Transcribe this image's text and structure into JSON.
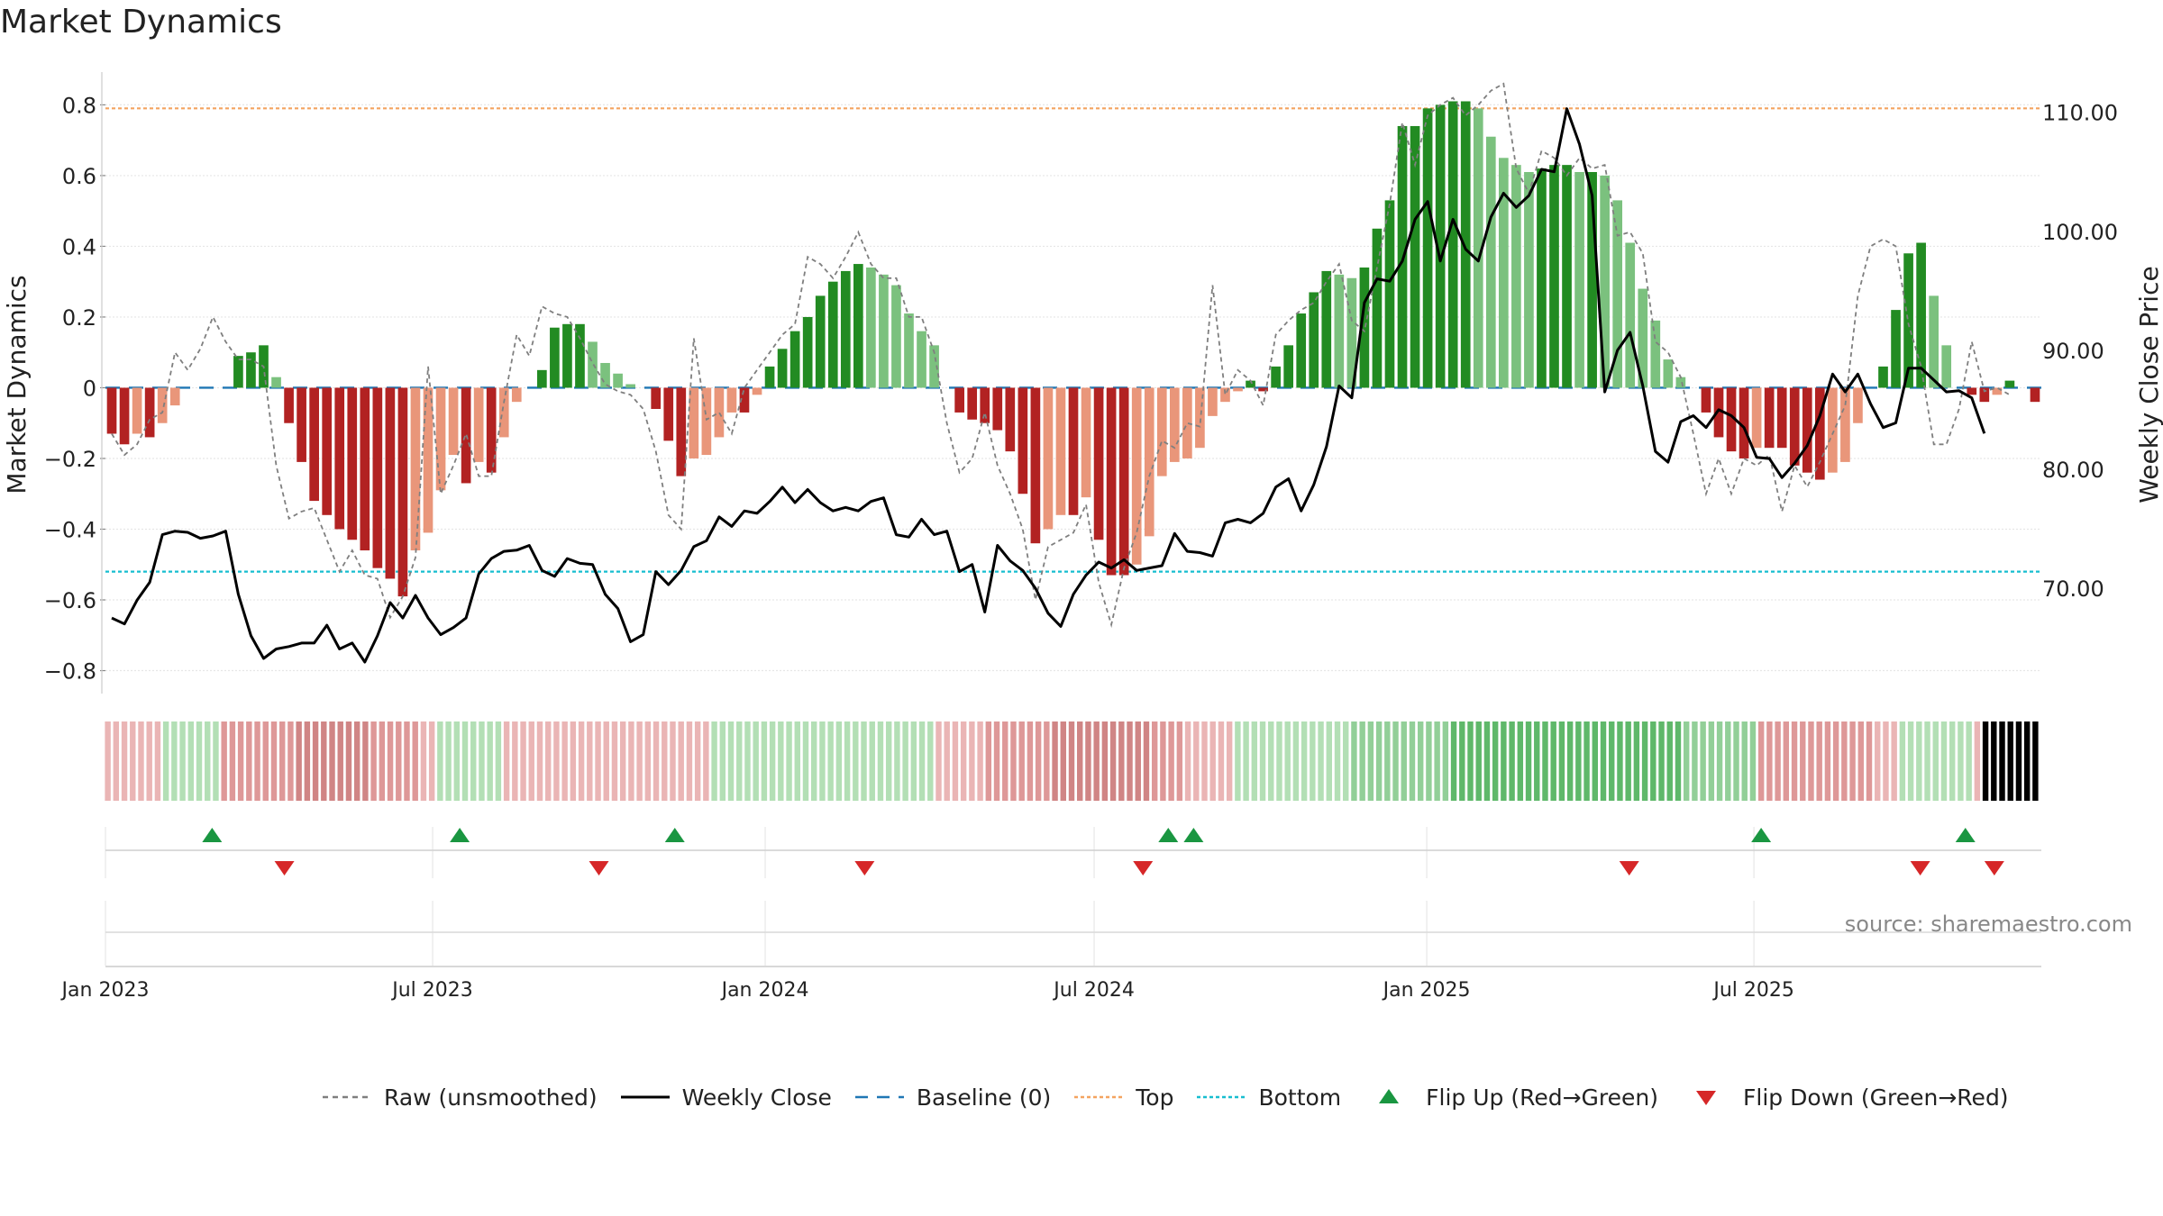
{
  "chart_data": {
    "type": "bar",
    "title": "Market Dynamics",
    "ylabel_left": "Market Dynamics",
    "ylabel_right": "Weekly Close Price",
    "source_text": "source: sharemaestro.com",
    "x_start": "2023-01-01",
    "x_interval_days": 7,
    "ylim_left": [
      -0.87,
      0.88
    ],
    "ylim_right": [
      61.0,
      113.0
    ],
    "left_ticks": [
      "0.8",
      "0.6",
      "0.4",
      "0.2",
      "0",
      "−0.2",
      "−0.4",
      "−0.6",
      "−0.8"
    ],
    "right_ticks": [
      "110.00",
      "100.00",
      "90.00",
      "80.00",
      "70.00"
    ],
    "x_tick_labels": [
      {
        "label": "Jan 2023",
        "date": "2023-01-01"
      },
      {
        "label": "Jul 2023",
        "date": "2023-07-01"
      },
      {
        "label": "Jan 2024",
        "date": "2024-01-01"
      },
      {
        "label": "Jul 2024",
        "date": "2024-07-01"
      },
      {
        "label": "Jan 2025",
        "date": "2025-01-01"
      },
      {
        "label": "Jul 2025",
        "date": "2025-07-01"
      }
    ],
    "reference_lines": {
      "top": 0.79,
      "bottom": -0.52,
      "baseline": 0
    },
    "grid": true,
    "legend_placement": "bottom",
    "colors": {
      "strong_green": "#228B22",
      "light_green": "#7BC17E",
      "strong_red": "#B22222",
      "light_red": "#E9967A",
      "raw_line": "#7f7f7f",
      "close_line": "#000000",
      "baseline": "#1f77b4",
      "top": "#f4a460",
      "bottom": "#17becf",
      "flip_up": "#1a9641",
      "flip_down": "#d62728"
    },
    "series": [
      {
        "name": "Market Dynamics",
        "values": [
          -0.13,
          -0.16,
          -0.13,
          -0.14,
          -0.1,
          -0.05,
          0.0,
          0.0,
          0.0,
          0.0,
          0.09,
          0.1,
          0.12,
          0.03,
          -0.1,
          -0.21,
          -0.32,
          -0.36,
          -0.4,
          -0.43,
          -0.46,
          -0.51,
          -0.54,
          -0.59,
          -0.46,
          -0.41,
          -0.29,
          -0.19,
          -0.27,
          -0.21,
          -0.24,
          -0.14,
          -0.04,
          0.0,
          0.05,
          0.17,
          0.18,
          0.18,
          0.13,
          0.07,
          0.04,
          0.01,
          0.0,
          -0.06,
          -0.15,
          -0.25,
          -0.2,
          -0.19,
          -0.14,
          -0.07,
          -0.07,
          -0.02,
          0.06,
          0.11,
          0.16,
          0.2,
          0.26,
          0.3,
          0.33,
          0.35,
          0.34,
          0.32,
          0.29,
          0.21,
          0.16,
          0.12,
          0.0,
          -0.07,
          -0.09,
          -0.1,
          -0.12,
          -0.18,
          -0.3,
          -0.44,
          -0.4,
          -0.36,
          -0.36,
          -0.31,
          -0.43,
          -0.53,
          -0.53,
          -0.5,
          -0.42,
          -0.25,
          -0.21,
          -0.2,
          -0.17,
          -0.08,
          -0.04,
          -0.01,
          0.02,
          -0.01,
          0.06,
          0.12,
          0.21,
          0.27,
          0.33,
          0.32,
          0.31,
          0.34,
          0.45,
          0.53,
          0.74,
          0.74,
          0.79,
          0.8,
          0.81,
          0.81,
          0.79,
          0.71,
          0.65,
          0.63,
          0.61,
          0.62,
          0.63,
          0.63,
          0.61,
          0.61,
          0.6,
          0.53,
          0.41,
          0.28,
          0.19,
          0.08,
          0.03,
          0.0,
          -0.07,
          -0.14,
          -0.18,
          -0.2,
          -0.17,
          -0.17,
          -0.17,
          -0.22,
          -0.24,
          -0.26,
          -0.24,
          -0.21,
          -0.1,
          0.0,
          0.06,
          0.22,
          0.38,
          0.41,
          0.26,
          0.12,
          0.0,
          -0.02,
          -0.04,
          -0.02,
          0.02,
          0.0,
          -0.04
        ]
      },
      {
        "name": "Raw (unsmoothed)",
        "values": [
          -0.13,
          -0.19,
          -0.16,
          -0.09,
          -0.07,
          0.1,
          0.05,
          0.11,
          0.2,
          0.13,
          0.08,
          0.08,
          0.06,
          -0.22,
          -0.37,
          -0.35,
          -0.34,
          -0.43,
          -0.52,
          -0.46,
          -0.53,
          -0.54,
          -0.65,
          -0.59,
          -0.48,
          0.06,
          -0.3,
          -0.22,
          -0.13,
          -0.25,
          -0.25,
          -0.04,
          0.15,
          0.09,
          0.23,
          0.21,
          0.2,
          0.14,
          0.07,
          0.01,
          -0.01,
          -0.02,
          -0.06,
          -0.18,
          -0.36,
          -0.4,
          0.14,
          -0.09,
          -0.07,
          -0.13,
          0.0,
          0.05,
          0.1,
          0.15,
          0.18,
          0.37,
          0.35,
          0.31,
          0.37,
          0.44,
          0.35,
          0.31,
          0.31,
          0.2,
          0.2,
          0.1,
          -0.1,
          -0.24,
          -0.2,
          -0.07,
          -0.22,
          -0.3,
          -0.4,
          -0.6,
          -0.45,
          -0.43,
          -0.41,
          -0.33,
          -0.55,
          -0.67,
          -0.51,
          -0.41,
          -0.25,
          -0.15,
          -0.17,
          -0.1,
          -0.11,
          0.29,
          -0.02,
          0.05,
          0.02,
          -0.05,
          0.15,
          0.19,
          0.22,
          0.24,
          0.3,
          0.35,
          0.19,
          0.16,
          0.34,
          0.52,
          0.75,
          0.63,
          0.77,
          0.8,
          0.82,
          0.77,
          0.8,
          0.84,
          0.86,
          0.62,
          0.55,
          0.67,
          0.65,
          0.6,
          0.65,
          0.62,
          0.63,
          0.43,
          0.44,
          0.38,
          0.13,
          0.1,
          0.03,
          -0.13,
          -0.3,
          -0.2,
          -0.3,
          -0.2,
          -0.22,
          -0.19,
          -0.35,
          -0.22,
          -0.28,
          -0.21,
          -0.13,
          -0.05,
          0.26,
          0.4,
          0.42,
          0.4,
          0.18,
          0.06,
          -0.16,
          -0.16,
          -0.06,
          0.13,
          -0.01,
          0.0,
          -0.02
        ]
      },
      {
        "name": "Weekly Close",
        "values": [
          67.5,
          67.0,
          69.0,
          70.5,
          74.5,
          74.8,
          74.7,
          74.2,
          74.4,
          74.8,
          69.5,
          66.0,
          64.1,
          64.9,
          65.1,
          65.4,
          65.4,
          66.9,
          64.9,
          65.4,
          63.8,
          66.0,
          68.8,
          67.5,
          69.4,
          67.5,
          66.1,
          66.7,
          67.5,
          71.2,
          72.5,
          73.1,
          73.2,
          73.6,
          71.5,
          71.0,
          72.5,
          72.1,
          72.0,
          69.5,
          68.3,
          65.5,
          66.1,
          71.4,
          70.3,
          71.5,
          73.5,
          74.0,
          76.0,
          75.2,
          76.5,
          76.3,
          77.3,
          78.5,
          77.2,
          78.3,
          77.2,
          76.5,
          76.8,
          76.5,
          77.3,
          77.6,
          74.5,
          74.3,
          75.8,
          74.5,
          74.8,
          71.4,
          72.0,
          68.0,
          73.6,
          72.3,
          71.5,
          70.0,
          67.9,
          66.8,
          69.5,
          71.1,
          72.2,
          71.7,
          72.4,
          71.5,
          71.7,
          71.9,
          74.6,
          73.1,
          73.0,
          72.7,
          75.5,
          75.8,
          75.5,
          76.3,
          78.5,
          79.2,
          76.5,
          78.7,
          81.9,
          87.0,
          86.0,
          94.0,
          96.0,
          95.8,
          97.5,
          101.0,
          102.5,
          97.5,
          101.0,
          98.5,
          97.5,
          101.2,
          103.2,
          102.0,
          103.0,
          105.2,
          105.0,
          110.3,
          107.3,
          103.0,
          86.5,
          90.0,
          91.5,
          87.0,
          81.5,
          80.6,
          84.0,
          84.5,
          83.5,
          85.0,
          84.5,
          83.5,
          81.0,
          80.9,
          79.3,
          80.5,
          82.0,
          84.5,
          88.0,
          86.5,
          88.0,
          85.5,
          83.5,
          83.9,
          88.5,
          88.5,
          87.5,
          86.5,
          86.6,
          86.0,
          83.0
        ]
      }
    ],
    "regime_strip": {
      "levels": [
        1,
        1,
        1,
        1,
        1,
        1,
        1,
        1,
        1,
        1,
        1,
        1,
        1,
        1,
        1,
        1,
        2,
        2,
        2,
        2,
        2,
        2,
        2,
        2,
        2,
        2,
        2,
        2,
        2,
        2,
        2,
        2,
        2,
        2,
        2,
        1,
        1,
        1,
        1,
        1,
        1,
        1,
        1,
        1,
        1,
        1,
        1,
        1,
        1,
        1,
        1,
        1,
        1,
        1,
        1,
        1,
        1,
        1,
        1,
        1,
        1,
        2,
        2,
        2,
        2,
        2,
        2,
        2,
        2,
        2,
        2,
        2,
        2,
        2,
        2,
        2,
        3,
        3,
        3,
        3,
        3,
        3,
        3,
        3,
        3,
        3,
        3,
        3,
        3,
        2,
        2,
        1,
        1,
        1,
        1,
        1,
        1,
        1,
        2,
        2,
        2,
        2,
        2,
        2,
        2,
        2,
        2,
        2,
        2,
        2,
        3,
        3,
        3,
        3,
        3,
        3,
        3,
        3,
        3,
        3,
        3,
        3,
        3,
        3,
        3,
        2,
        2,
        2,
        2,
        2,
        2,
        2,
        2,
        2,
        2,
        2,
        2,
        2,
        1,
        1,
        1,
        1,
        1,
        1,
        1,
        1,
        1,
        1,
        1,
        1,
        1,
        1,
        1,
        1,
        1,
        1,
        1,
        1,
        1,
        1,
        1,
        1,
        1,
        1,
        1,
        1,
        1,
        1,
        1,
        1,
        1,
        1,
        1,
        1,
        1,
        1,
        1,
        1,
        1,
        1,
        1,
        1,
        1,
        1,
        1,
        1,
        1,
        1,
        1,
        1,
        1,
        1,
        1,
        1,
        1,
        1,
        1,
        1,
        1,
        1,
        1,
        1,
        1,
        1,
        1,
        1
      ],
      "signs": [
        -1,
        -1,
        -1,
        -1,
        -1,
        -1,
        -1,
        1,
        1,
        1,
        1,
        1,
        1,
        1,
        -1,
        -1,
        -1,
        -1,
        -1,
        -1,
        -1,
        -1,
        -1,
        -1,
        -1,
        -1,
        -1,
        -1,
        -1,
        -1,
        -1,
        -1,
        -1,
        -1,
        -1,
        -1,
        -1,
        -1,
        -1,
        -1,
        1,
        1,
        1,
        1,
        1,
        1,
        1,
        1,
        -1,
        -1,
        -1,
        -1,
        -1,
        -1,
        -1,
        -1,
        -1,
        -1,
        -1,
        -1,
        -1,
        -1,
        -1,
        -1,
        -1,
        -1,
        -1,
        -1,
        -1,
        -1,
        -1,
        -1,
        -1,
        1,
        1,
        1,
        1,
        1,
        1,
        1,
        1,
        1,
        1,
        1,
        1,
        1,
        1,
        1,
        1,
        1,
        1,
        1,
        1,
        1,
        1,
        1,
        1,
        1,
        1,
        1,
        -1,
        -1,
        -1,
        -1,
        -1,
        -1,
        -1,
        -1,
        -1,
        -1,
        -1,
        -1,
        -1,
        -1,
        -1,
        -1,
        -1,
        -1,
        -1,
        -1,
        -1,
        -1,
        -1,
        -1,
        -1,
        -1,
        -1,
        -1,
        -1,
        -1,
        -1,
        -1,
        -1,
        -1,
        -1,
        -1,
        1,
        1,
        1,
        1,
        1,
        1,
        1,
        1,
        1,
        1,
        1,
        1,
        1,
        1,
        1,
        1,
        1,
        1,
        1,
        1,
        1,
        1,
        1,
        1,
        1,
        1,
        1,
        1,
        1,
        1,
        1,
        1,
        1,
        1,
        1,
        1,
        1,
        1,
        1,
        1,
        1,
        1,
        1,
        1,
        1,
        1,
        1,
        1,
        1,
        1,
        1,
        1,
        1,
        1,
        1,
        1,
        1,
        1,
        1,
        1,
        1,
        1,
        1,
        -1,
        -1,
        -1,
        -1,
        -1,
        -1,
        -1,
        -1,
        -1,
        -1,
        -1,
        -1,
        -1,
        -1,
        -1,
        -1,
        -1,
        1,
        1,
        1,
        1,
        1,
        1,
        1,
        1,
        1,
        -1,
        -1,
        -1,
        -1,
        1,
        1,
        1,
        -1
      ],
      "shades": [
        1,
        1,
        1,
        1,
        1,
        1,
        1,
        1,
        1,
        1,
        1,
        1,
        1,
        1,
        2,
        2,
        2,
        2,
        2,
        2,
        2,
        2,
        2,
        3,
        3,
        3,
        3,
        3,
        3,
        3,
        3,
        3,
        2,
        2,
        2,
        2,
        2,
        2,
        1,
        1,
        1,
        1,
        1,
        1,
        1,
        1,
        1,
        1,
        1,
        1,
        1,
        1,
        1,
        1,
        1,
        1,
        1,
        1,
        1,
        1,
        1,
        1,
        1,
        1,
        1,
        1,
        1,
        1,
        1,
        1,
        1,
        1,
        1,
        1,
        1,
        1,
        1,
        1,
        1,
        1,
        1,
        1,
        1,
        1,
        1,
        1,
        1,
        1,
        1,
        1,
        1,
        1,
        1,
        1,
        1,
        1,
        1,
        1,
        1,
        1,
        1,
        1,
        1,
        1,
        1,
        1,
        2,
        2,
        2,
        2,
        2,
        2,
        2,
        2,
        3,
        3,
        3,
        3,
        3,
        3,
        3,
        3,
        3,
        3,
        3,
        3,
        2,
        2,
        2,
        2,
        1,
        1,
        1,
        1,
        1,
        1,
        1,
        1,
        1,
        1,
        1,
        1,
        1,
        1,
        1,
        1,
        1,
        1,
        1,
        1,
        2,
        2,
        2,
        2,
        2,
        2,
        2,
        2,
        2,
        2,
        2,
        2,
        3,
        3,
        3,
        3,
        3,
        3,
        3,
        3,
        3,
        3,
        3,
        3,
        3,
        3,
        3,
        3,
        3,
        3,
        3,
        3,
        3,
        3,
        3,
        3,
        3,
        3,
        3,
        3,
        2,
        2,
        2,
        2,
        2,
        2,
        2,
        2,
        2,
        2,
        2,
        2,
        2,
        2,
        2,
        2,
        2,
        2,
        2,
        2,
        2,
        2,
        2,
        1,
        1,
        1,
        1,
        1,
        1,
        1,
        1,
        1,
        1,
        1,
        1,
        1
      ]
    },
    "flip_up_dates": [
      "2023-03-01",
      "2023-07-16",
      "2023-11-12",
      "2024-08-11",
      "2024-08-25",
      "2025-07-05",
      "2025-10-26"
    ],
    "flip_down_dates": [
      "2023-04-10",
      "2023-10-01",
      "2024-02-25",
      "2024-07-28",
      "2025-04-23",
      "2025-10-01",
      "2025-11-11"
    ]
  },
  "legend": [
    {
      "label": "Raw (unsmoothed)",
      "kind": "dashed-line",
      "color": "#7f7f7f"
    },
    {
      "label": "Weekly Close",
      "kind": "solid-line",
      "color": "#000000"
    },
    {
      "label": "Baseline (0)",
      "kind": "dashed-line-long",
      "color": "#1f77b4"
    },
    {
      "label": "Top",
      "kind": "dotted-line",
      "color": "#f4a460"
    },
    {
      "label": "Bottom",
      "kind": "dotted-line",
      "color": "#17becf"
    },
    {
      "label": "Flip Up (Red→Green)",
      "kind": "triangle-up",
      "color": "#1a9641"
    },
    {
      "label": "Flip Down (Green→Red)",
      "kind": "triangle-down",
      "color": "#d62728"
    }
  ]
}
